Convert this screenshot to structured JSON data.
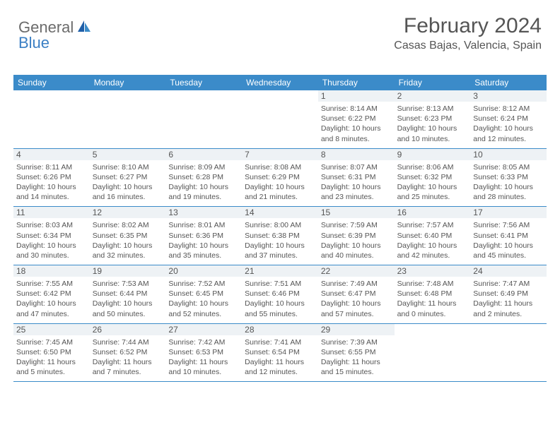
{
  "logo": {
    "text1": "General",
    "text2": "Blue"
  },
  "header": {
    "month": "February 2024",
    "location": "Casas Bajas, Valencia, Spain"
  },
  "colors": {
    "header_bg": "#3b8bc9",
    "header_text": "#ffffff",
    "daynum_bg": "#eef2f5",
    "border": "#3b8bc9",
    "body_text": "#555555",
    "logo_gray": "#6b6b6b",
    "logo_blue": "#3b7fc4",
    "page_bg": "#ffffff"
  },
  "dayLabels": [
    "Sunday",
    "Monday",
    "Tuesday",
    "Wednesday",
    "Thursday",
    "Friday",
    "Saturday"
  ],
  "weeks": [
    [
      null,
      null,
      null,
      null,
      {
        "n": "1",
        "sr": "8:14 AM",
        "ss": "6:22 PM",
        "dl": "10 hours and 8 minutes."
      },
      {
        "n": "2",
        "sr": "8:13 AM",
        "ss": "6:23 PM",
        "dl": "10 hours and 10 minutes."
      },
      {
        "n": "3",
        "sr": "8:12 AM",
        "ss": "6:24 PM",
        "dl": "10 hours and 12 minutes."
      }
    ],
    [
      {
        "n": "4",
        "sr": "8:11 AM",
        "ss": "6:26 PM",
        "dl": "10 hours and 14 minutes."
      },
      {
        "n": "5",
        "sr": "8:10 AM",
        "ss": "6:27 PM",
        "dl": "10 hours and 16 minutes."
      },
      {
        "n": "6",
        "sr": "8:09 AM",
        "ss": "6:28 PM",
        "dl": "10 hours and 19 minutes."
      },
      {
        "n": "7",
        "sr": "8:08 AM",
        "ss": "6:29 PM",
        "dl": "10 hours and 21 minutes."
      },
      {
        "n": "8",
        "sr": "8:07 AM",
        "ss": "6:31 PM",
        "dl": "10 hours and 23 minutes."
      },
      {
        "n": "9",
        "sr": "8:06 AM",
        "ss": "6:32 PM",
        "dl": "10 hours and 25 minutes."
      },
      {
        "n": "10",
        "sr": "8:05 AM",
        "ss": "6:33 PM",
        "dl": "10 hours and 28 minutes."
      }
    ],
    [
      {
        "n": "11",
        "sr": "8:03 AM",
        "ss": "6:34 PM",
        "dl": "10 hours and 30 minutes."
      },
      {
        "n": "12",
        "sr": "8:02 AM",
        "ss": "6:35 PM",
        "dl": "10 hours and 32 minutes."
      },
      {
        "n": "13",
        "sr": "8:01 AM",
        "ss": "6:36 PM",
        "dl": "10 hours and 35 minutes."
      },
      {
        "n": "14",
        "sr": "8:00 AM",
        "ss": "6:38 PM",
        "dl": "10 hours and 37 minutes."
      },
      {
        "n": "15",
        "sr": "7:59 AM",
        "ss": "6:39 PM",
        "dl": "10 hours and 40 minutes."
      },
      {
        "n": "16",
        "sr": "7:57 AM",
        "ss": "6:40 PM",
        "dl": "10 hours and 42 minutes."
      },
      {
        "n": "17",
        "sr": "7:56 AM",
        "ss": "6:41 PM",
        "dl": "10 hours and 45 minutes."
      }
    ],
    [
      {
        "n": "18",
        "sr": "7:55 AM",
        "ss": "6:42 PM",
        "dl": "10 hours and 47 minutes."
      },
      {
        "n": "19",
        "sr": "7:53 AM",
        "ss": "6:44 PM",
        "dl": "10 hours and 50 minutes."
      },
      {
        "n": "20",
        "sr": "7:52 AM",
        "ss": "6:45 PM",
        "dl": "10 hours and 52 minutes."
      },
      {
        "n": "21",
        "sr": "7:51 AM",
        "ss": "6:46 PM",
        "dl": "10 hours and 55 minutes."
      },
      {
        "n": "22",
        "sr": "7:49 AM",
        "ss": "6:47 PM",
        "dl": "10 hours and 57 minutes."
      },
      {
        "n": "23",
        "sr": "7:48 AM",
        "ss": "6:48 PM",
        "dl": "11 hours and 0 minutes."
      },
      {
        "n": "24",
        "sr": "7:47 AM",
        "ss": "6:49 PM",
        "dl": "11 hours and 2 minutes."
      }
    ],
    [
      {
        "n": "25",
        "sr": "7:45 AM",
        "ss": "6:50 PM",
        "dl": "11 hours and 5 minutes."
      },
      {
        "n": "26",
        "sr": "7:44 AM",
        "ss": "6:52 PM",
        "dl": "11 hours and 7 minutes."
      },
      {
        "n": "27",
        "sr": "7:42 AM",
        "ss": "6:53 PM",
        "dl": "11 hours and 10 minutes."
      },
      {
        "n": "28",
        "sr": "7:41 AM",
        "ss": "6:54 PM",
        "dl": "11 hours and 12 minutes."
      },
      {
        "n": "29",
        "sr": "7:39 AM",
        "ss": "6:55 PM",
        "dl": "11 hours and 15 minutes."
      },
      null,
      null
    ]
  ],
  "labels": {
    "sunrise": "Sunrise: ",
    "sunset": "Sunset: ",
    "daylight": "Daylight: "
  }
}
